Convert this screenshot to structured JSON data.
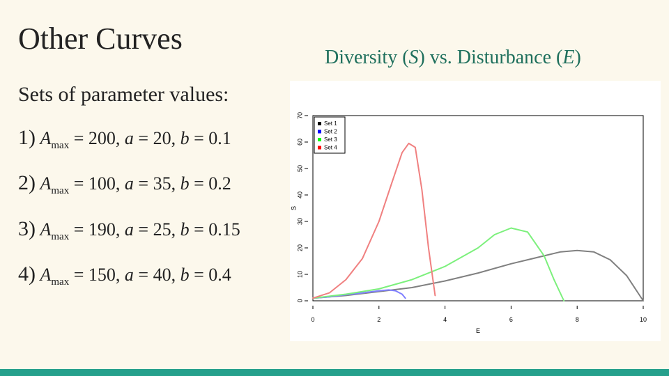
{
  "slide": {
    "title": "Other Curves",
    "chart_caption_prefix": "Diversity (",
    "chart_caption_s": "S",
    "chart_caption_mid": ") vs. Disturbance (",
    "chart_caption_e": "E",
    "chart_caption_suffix": ")",
    "sets_heading": "Sets of parameter values:",
    "parameter_sets": [
      {
        "index": "1)",
        "amax": "200",
        "a": "20",
        "b": "0.1"
      },
      {
        "index": "2)",
        "amax": "100",
        "a": "35",
        "b": "0.2"
      },
      {
        "index": "3)",
        "amax": "190",
        "a": "25",
        "b": "0.15"
      },
      {
        "index": "4)",
        "amax": "150",
        "a": "40",
        "b": "0.4"
      }
    ]
  },
  "colors": {
    "accent_teal": "#1e6f5c",
    "footer_bar": "#26a08c",
    "background": "#fcf8ec"
  },
  "chart_data": {
    "type": "line",
    "title": "",
    "xlabel": "E",
    "ylabel": "S",
    "xlim": [
      0,
      10
    ],
    "ylim": [
      0,
      70
    ],
    "xticks": [
      0,
      2,
      4,
      6,
      8,
      10
    ],
    "yticks": [
      0,
      10,
      20,
      30,
      40,
      50,
      60,
      70
    ],
    "legend_position": "top-left",
    "legend_keys": [
      {
        "name": "Set 1",
        "color": "#000000"
      },
      {
        "name": "Set 2",
        "color": "#0000ff"
      },
      {
        "name": "Set 3",
        "color": "#00ff00"
      },
      {
        "name": "Set 4",
        "color": "#ff0000"
      }
    ],
    "series": [
      {
        "name": "Set 1",
        "color": "#808080",
        "x": [
          0,
          1,
          2,
          3,
          4,
          5,
          6,
          7,
          7.5,
          8,
          8.5,
          9,
          9.5,
          10
        ],
        "y": [
          1,
          2,
          3.5,
          5,
          7.5,
          10.5,
          14,
          17,
          18.5,
          19,
          18.5,
          15.5,
          9.5,
          0
        ]
      },
      {
        "name": "Set 2",
        "color": "#8080ff",
        "x": [
          0,
          0.5,
          1,
          1.5,
          2,
          2.3,
          2.5,
          2.7,
          2.8
        ],
        "y": [
          1,
          1.5,
          2.3,
          3,
          3.8,
          4.1,
          3.8,
          2.5,
          1
        ]
      },
      {
        "name": "Set 3",
        "color": "#7cf07c",
        "x": [
          0,
          1,
          2,
          3,
          4,
          5,
          5.5,
          6,
          6.5,
          7,
          7.3,
          7.6
        ],
        "y": [
          1,
          2.5,
          4.5,
          8,
          13,
          20,
          25,
          27.5,
          26,
          17,
          8,
          0
        ]
      },
      {
        "name": "Set 4",
        "color": "#f08080",
        "x": [
          0,
          0.5,
          1,
          1.5,
          2,
          2.4,
          2.7,
          2.9,
          3.1,
          3.3,
          3.5,
          3.7
        ],
        "y": [
          1,
          3,
          8,
          16,
          30,
          45,
          56,
          59.5,
          58,
          42,
          20,
          2
        ]
      }
    ]
  }
}
